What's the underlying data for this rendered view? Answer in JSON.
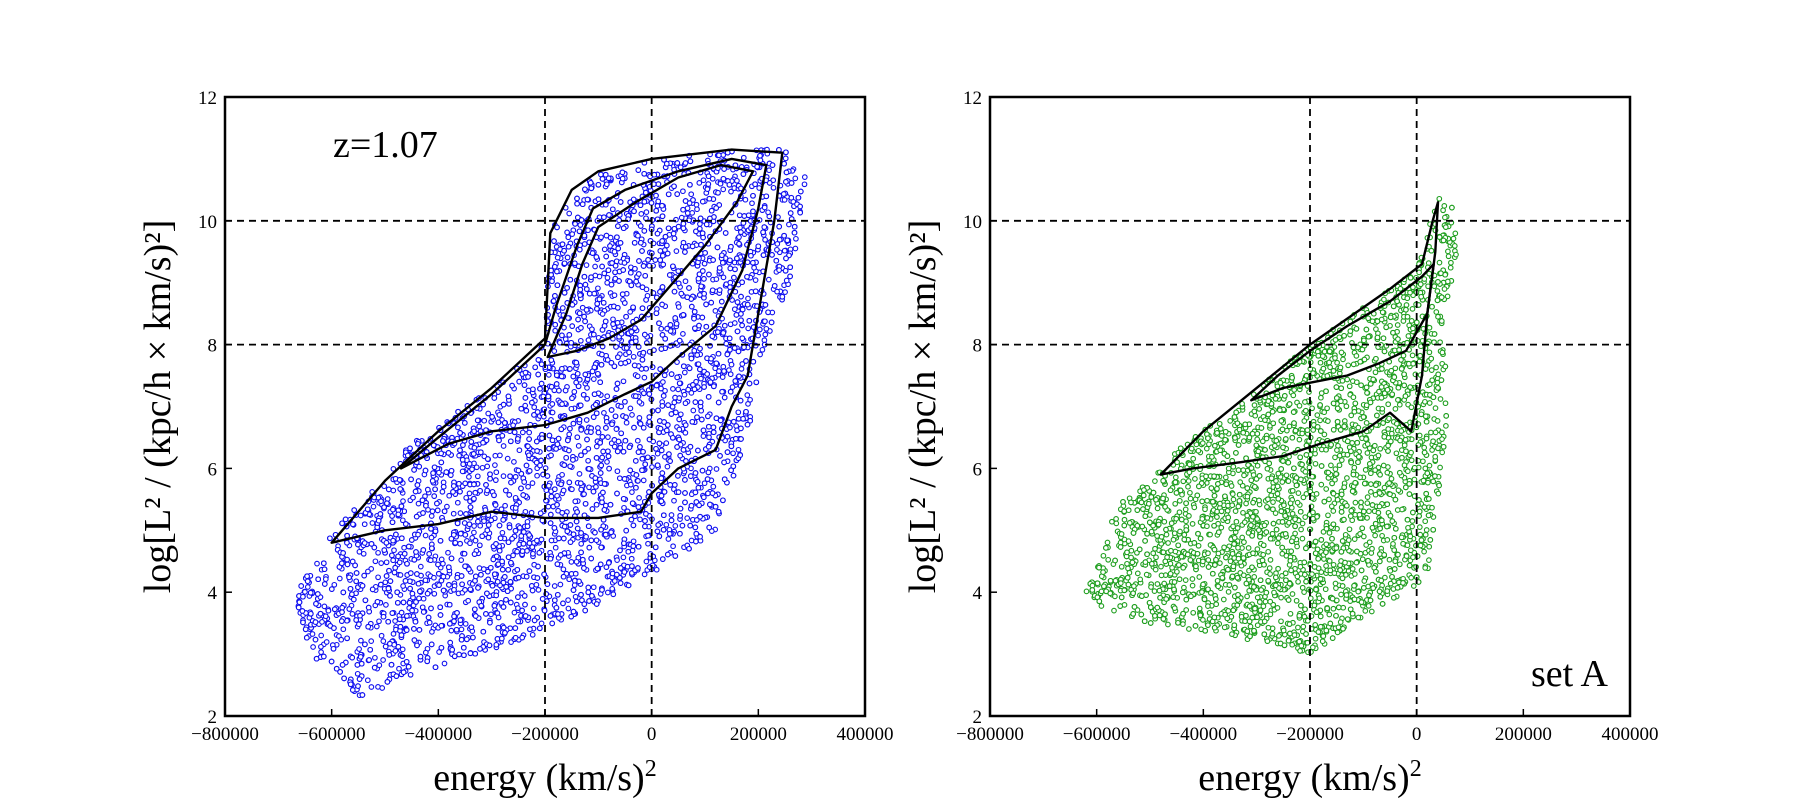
{
  "chart_data": [
    {
      "type": "scatter",
      "id": "left",
      "xlabel": "energy   (km/s)",
      "xlabel_sup": "2",
      "ylabel": "log[L² / (kpc/h × km/s)²]",
      "xlim": [
        -800000,
        400000
      ],
      "ylim": [
        2,
        12
      ],
      "xticks": [
        -800000,
        -600000,
        -400000,
        -200000,
        0,
        200000,
        400000
      ],
      "xtick_labels": [
        "−800000",
        "−600000",
        "−400000",
        "−200000",
        "0",
        "200000",
        "400000"
      ],
      "yticks": [
        2,
        4,
        6,
        8,
        10,
        12
      ],
      "ytick_labels": [
        "2",
        "4",
        "6",
        "8",
        "10",
        "12"
      ],
      "vlines": [
        -200000,
        0
      ],
      "hlines": [
        8,
        10
      ],
      "annotation": "z=1.07",
      "annotation_pos": "top-left",
      "marker_color": "#1010f0",
      "marker_style": "open-circle",
      "region": [
        [
          -670000,
          3.9
        ],
        [
          -610000,
          4.9
        ],
        [
          -450000,
          6.4
        ],
        [
          -300000,
          7.3
        ],
        [
          -200000,
          8.0
        ],
        [
          -190000,
          9.8
        ],
        [
          -140000,
          10.6
        ],
        [
          -50000,
          11.0
        ],
        [
          100000,
          11.1
        ],
        [
          245000,
          11.2
        ],
        [
          290000,
          10.7
        ],
        [
          260000,
          9.0
        ],
        [
          215000,
          8.0
        ],
        [
          180000,
          6.5
        ],
        [
          120000,
          5.0
        ],
        [
          20000,
          4.4
        ],
        [
          -100000,
          3.8
        ],
        [
          -250000,
          3.2
        ],
        [
          -400000,
          2.8
        ],
        [
          -550000,
          2.3
        ],
        [
          -640000,
          3.0
        ]
      ],
      "contours": [
        [
          [
            -600000,
            4.8
          ],
          [
            -500000,
            5.0
          ],
          [
            -400000,
            5.1
          ],
          [
            -300000,
            5.3
          ],
          [
            -200000,
            5.2
          ],
          [
            -100000,
            5.2
          ],
          [
            -20000,
            5.3
          ],
          [
            0,
            5.6
          ],
          [
            50000,
            6.0
          ],
          [
            120000,
            6.3
          ],
          [
            150000,
            7.0
          ],
          [
            180000,
            7.5
          ],
          [
            200000,
            8.5
          ],
          [
            230000,
            10.0
          ],
          [
            245000,
            11.1
          ],
          [
            150000,
            11.15
          ],
          [
            0,
            11.0
          ],
          [
            -100000,
            10.8
          ],
          [
            -150000,
            10.5
          ],
          [
            -190000,
            9.8
          ],
          [
            -200000,
            8.1
          ],
          [
            -300000,
            7.3
          ],
          [
            -400000,
            6.6
          ],
          [
            -500000,
            5.8
          ],
          [
            -600000,
            4.8
          ]
        ],
        [
          [
            -470000,
            6.0
          ],
          [
            -380000,
            6.4
          ],
          [
            -300000,
            6.6
          ],
          [
            -200000,
            6.7
          ],
          [
            -120000,
            6.9
          ],
          [
            -50000,
            7.2
          ],
          [
            0,
            7.4
          ],
          [
            50000,
            7.8
          ],
          [
            120000,
            8.3
          ],
          [
            170000,
            9.2
          ],
          [
            200000,
            10.2
          ],
          [
            215000,
            10.9
          ],
          [
            150000,
            11.0
          ],
          [
            50000,
            10.8
          ],
          [
            -50000,
            10.5
          ],
          [
            -110000,
            10.2
          ],
          [
            -140000,
            9.6
          ],
          [
            -180000,
            8.6
          ],
          [
            -200000,
            8.0
          ],
          [
            -300000,
            7.2
          ],
          [
            -400000,
            6.5
          ],
          [
            -470000,
            6.0
          ]
        ],
        [
          [
            -195000,
            7.8
          ],
          [
            -140000,
            7.9
          ],
          [
            -80000,
            8.1
          ],
          [
            -20000,
            8.4
          ],
          [
            30000,
            8.9
          ],
          [
            100000,
            9.6
          ],
          [
            160000,
            10.3
          ],
          [
            190000,
            10.8
          ],
          [
            130000,
            10.9
          ],
          [
            50000,
            10.7
          ],
          [
            -30000,
            10.3
          ],
          [
            -100000,
            9.9
          ],
          [
            -130000,
            9.3
          ],
          [
            -160000,
            8.5
          ],
          [
            -195000,
            7.8
          ]
        ]
      ]
    },
    {
      "type": "scatter",
      "id": "right",
      "xlabel": "energy   (km/s)",
      "xlabel_sup": "2",
      "ylabel": "log[L² / (kpc/h × km/s)²]",
      "xlim": [
        -800000,
        400000
      ],
      "ylim": [
        2,
        12
      ],
      "xticks": [
        -800000,
        -600000,
        -400000,
        -200000,
        0,
        200000,
        400000
      ],
      "xtick_labels": [
        "−800000",
        "−600000",
        "−400000",
        "−200000",
        "0",
        "200000",
        "400000"
      ],
      "yticks": [
        2,
        4,
        6,
        8,
        10,
        12
      ],
      "ytick_labels": [
        "2",
        "4",
        "6",
        "8",
        "10",
        "12"
      ],
      "vlines": [
        -200000,
        0
      ],
      "hlines": [
        8,
        10
      ],
      "annotation": "set A",
      "annotation_pos": "bottom-right",
      "marker_color": "#1e9e1e",
      "marker_style": "open-circle",
      "region": [
        [
          -620000,
          4.0
        ],
        [
          -560000,
          5.5
        ],
        [
          -450000,
          6.3
        ],
        [
          -300000,
          7.3
        ],
        [
          -200000,
          8.0
        ],
        [
          -100000,
          8.6
        ],
        [
          0,
          9.2
        ],
        [
          20000,
          9.8
        ],
        [
          40000,
          10.4
        ],
        [
          70000,
          10.2
        ],
        [
          80000,
          9.5
        ],
        [
          50000,
          8.5
        ],
        [
          60000,
          7.0
        ],
        [
          40000,
          5.5
        ],
        [
          20000,
          4.2
        ],
        [
          -100000,
          3.6
        ],
        [
          -200000,
          3.0
        ],
        [
          -350000,
          3.3
        ],
        [
          -500000,
          3.5
        ],
        [
          -600000,
          3.8
        ]
      ],
      "contours": [
        [
          [
            -480000,
            5.9
          ],
          [
            -420000,
            6.0
          ],
          [
            -330000,
            6.1
          ],
          [
            -250000,
            6.2
          ],
          [
            -180000,
            6.4
          ],
          [
            -100000,
            6.6
          ],
          [
            -50000,
            6.9
          ],
          [
            -10000,
            6.6
          ],
          [
            10000,
            7.5
          ],
          [
            20000,
            8.5
          ],
          [
            35000,
            9.5
          ],
          [
            40000,
            10.3
          ],
          [
            30000,
            10.0
          ],
          [
            10000,
            9.3
          ],
          [
            -50000,
            8.9
          ],
          [
            -150000,
            8.3
          ],
          [
            -200000,
            8.0
          ],
          [
            -300000,
            7.3
          ],
          [
            -400000,
            6.6
          ],
          [
            -480000,
            5.9
          ]
        ],
        [
          [
            -310000,
            7.1
          ],
          [
            -250000,
            7.3
          ],
          [
            -190000,
            7.4
          ],
          [
            -130000,
            7.5
          ],
          [
            -70000,
            7.7
          ],
          [
            -20000,
            7.9
          ],
          [
            20000,
            8.5
          ],
          [
            32000,
            9.3
          ],
          [
            10000,
            9.1
          ],
          [
            -50000,
            8.7
          ],
          [
            -130000,
            8.3
          ],
          [
            -200000,
            7.9
          ],
          [
            -260000,
            7.5
          ],
          [
            -310000,
            7.1
          ]
        ]
      ]
    }
  ]
}
